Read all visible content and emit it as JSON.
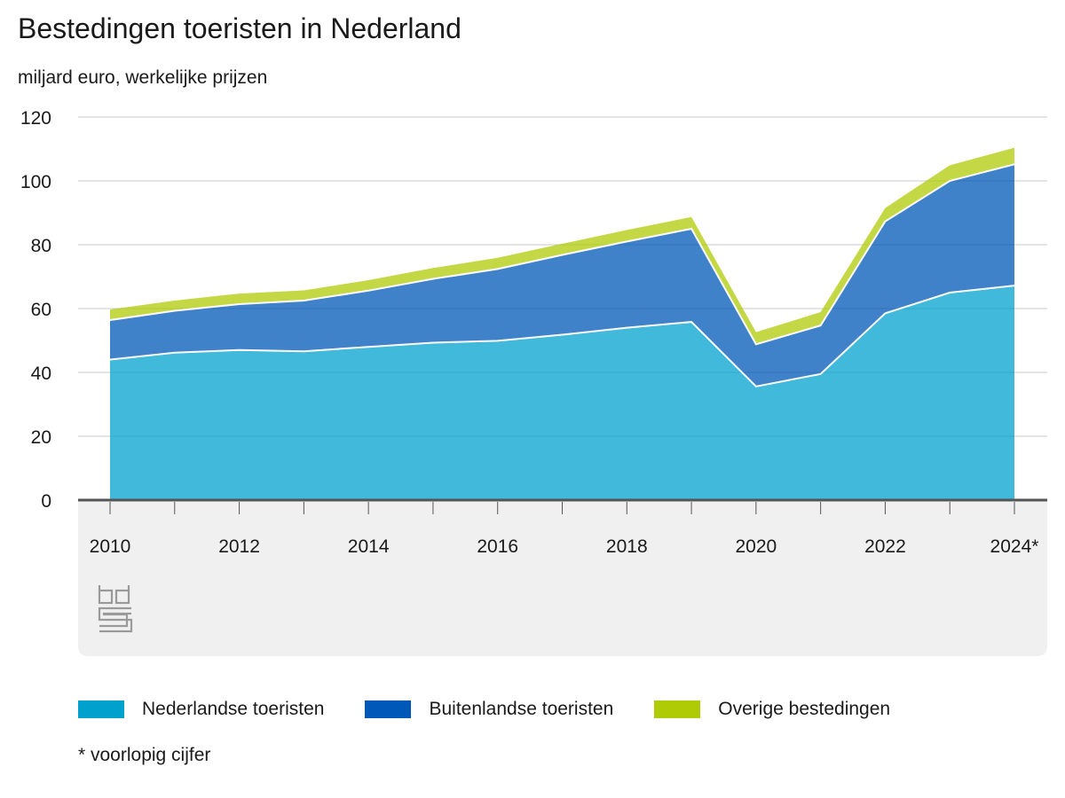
{
  "chart_data": {
    "type": "area",
    "stacked": true,
    "title": "Bestedingen toeristen in Nederland",
    "subtitle": "miljard euro, werkelijke prijzen",
    "x": [
      "2010",
      "2011",
      "2012",
      "2013",
      "2014",
      "2015",
      "2016",
      "2017",
      "2018",
      "2019",
      "2020",
      "2021",
      "2022",
      "2023",
      "2024*"
    ],
    "x_tick_labels": [
      "2010",
      "2012",
      "2014",
      "2016",
      "2018",
      "2020",
      "2022",
      "2024*"
    ],
    "ylim": [
      0,
      120
    ],
    "y_ticks": [
      "0",
      "20",
      "40",
      "60",
      "80",
      "100",
      "120"
    ],
    "grid": true,
    "legend_position": "bottom",
    "series": [
      {
        "name": "Nederlandse toeristen",
        "color": "#00a1cd",
        "values": [
          44,
          46.2,
          47,
          46.6,
          48,
          49.3,
          49.9,
          51.8,
          54,
          55.8,
          35.6,
          39.5,
          58.5,
          65,
          67.2
        ]
      },
      {
        "name": "Buitenlandse toeristen",
        "color": "#0058b8",
        "values": [
          12.4,
          13.1,
          14.4,
          15.9,
          17.6,
          20,
          22.5,
          25,
          27,
          29.2,
          13.2,
          15.2,
          28.8,
          35,
          38
        ]
      },
      {
        "name": "Overige bestedingen",
        "color": "#afcb05",
        "values": [
          3.3,
          3.2,
          3.3,
          3.2,
          3.3,
          3.4,
          3.5,
          3.5,
          3.6,
          3.7,
          3.8,
          4.2,
          4.2,
          4.9,
          5.2
        ]
      }
    ]
  },
  "footnote": "* voorlopig cijfer"
}
